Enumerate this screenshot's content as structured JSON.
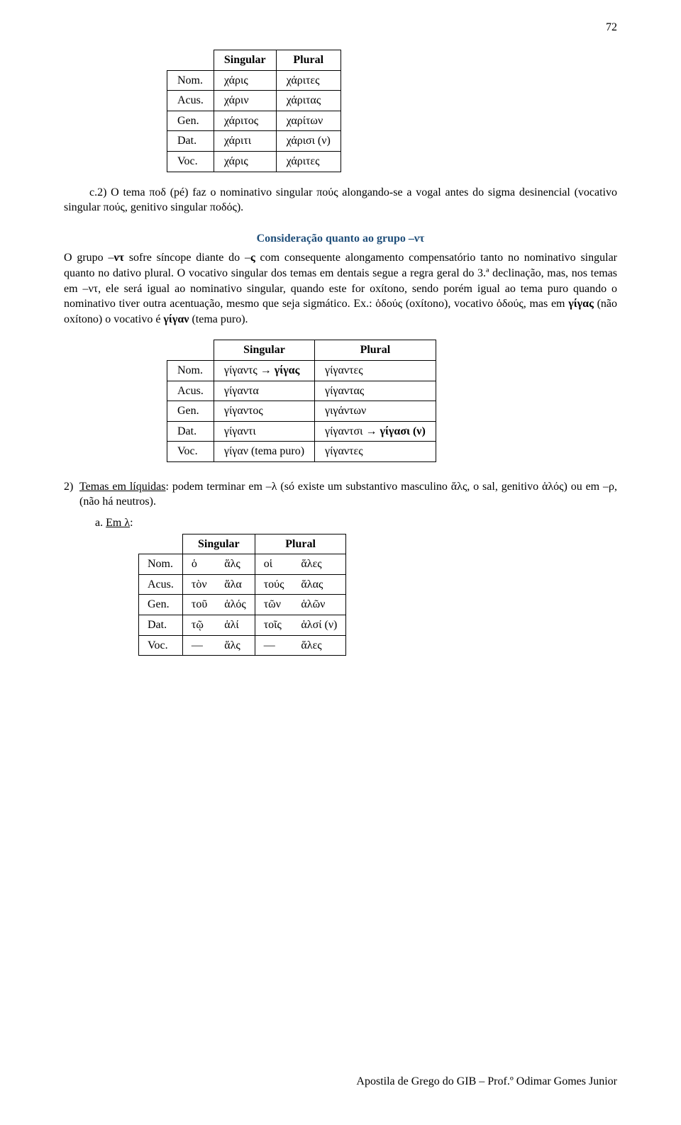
{
  "page_number": "72",
  "table1": {
    "headers": [
      "",
      "Singular",
      "Plural"
    ],
    "rows": [
      [
        "Nom.",
        "χάρις",
        "χάριτες"
      ],
      [
        "Acus.",
        "χάριν",
        "χάριτας"
      ],
      [
        "Gen.",
        "χάριτος",
        "χαρίτων"
      ],
      [
        "Dat.",
        "χάριτι",
        "χάρισι (ν)"
      ],
      [
        "Voc.",
        "χάρις",
        "χάριτες"
      ]
    ]
  },
  "para1": "c.2) O tema ποδ (pé) faz o nominativo singular πούς alongando-se a vogal antes do sigma desinencial (vocativo singular πούς, genitivo singular ποδός).",
  "consider_heading": "Consideração quanto ao grupo –ντ",
  "para2_a": "O grupo –",
  "para2_b": "ντ",
  "para2_c": " sofre síncope diante do –",
  "para2_d": "ς",
  "para2_e": " com consequente alongamento compensatório tanto no nominativo singular quanto no dativo plural. O vocativo singular dos temas em dentais segue a regra geral do 3.ª declinação, mas, nos temas em –ντ, ele será igual ao nominativo singular, quando este for oxítono, sendo porém igual ao tema puro quando o nominativo tiver outra acentuação, mesmo que seja sigmático. Ex.: ὁδούς (oxítono), vocativo ὁδούς, mas em ",
  "para2_f": "γίγας",
  "para2_g": " (não oxítono) o vocativo é ",
  "para2_h": "γίγαν",
  "para2_i": " (tema puro).",
  "table2": {
    "headers": [
      "",
      "Singular",
      "Plural"
    ],
    "rows": [
      [
        "Nom.",
        "γίγαντς → γίγας",
        "γίγαντες"
      ],
      [
        "Acus.",
        "γίγαντα",
        "γίγαντας"
      ],
      [
        "Gen.",
        "γίγαντος",
        "γιγάντων"
      ],
      [
        "Dat.",
        "γίγαντι",
        "γίγαντσι → γίγασι (ν)"
      ],
      [
        "Voc.",
        "γίγαν (tema puro)",
        "γίγαντες"
      ]
    ],
    "bold_singular": [
      true,
      false,
      false,
      false,
      false
    ],
    "bold_plural": [
      false,
      false,
      false,
      true,
      false
    ]
  },
  "list2_num": "2)",
  "list2_a": "Temas em líquidas",
  "list2_b": ": podem terminar em –λ (só existe um substantivo masculino ἅλς, o sal, genitivo ἁλός) ou em –ρ,  (não há neutros).",
  "sub_a_label": "a.",
  "sub_a_u": "Em λ",
  "sub_a_colon": ":",
  "table3": {
    "headers": [
      "",
      "Singular",
      "",
      "Plural",
      ""
    ],
    "rows": [
      [
        "Nom.",
        "ὁ",
        "ἅλς",
        "οἱ",
        "ἅλες"
      ],
      [
        "Acus.",
        "τὸν",
        "ἅλα",
        "τούς",
        "ἅλας"
      ],
      [
        "Gen.",
        "τοῦ",
        "ἁλός",
        "τῶν",
        "ἁλῶν"
      ],
      [
        "Dat.",
        "τῷ",
        "ἁλί",
        "τοῖς",
        "ἁλσί (ν)"
      ],
      [
        "Voc.",
        "―",
        "ἅλς",
        "―",
        "ἅλες"
      ]
    ]
  },
  "footer": "Apostila de Grego do GIB – Prof.º Odimar Gomes Junior"
}
